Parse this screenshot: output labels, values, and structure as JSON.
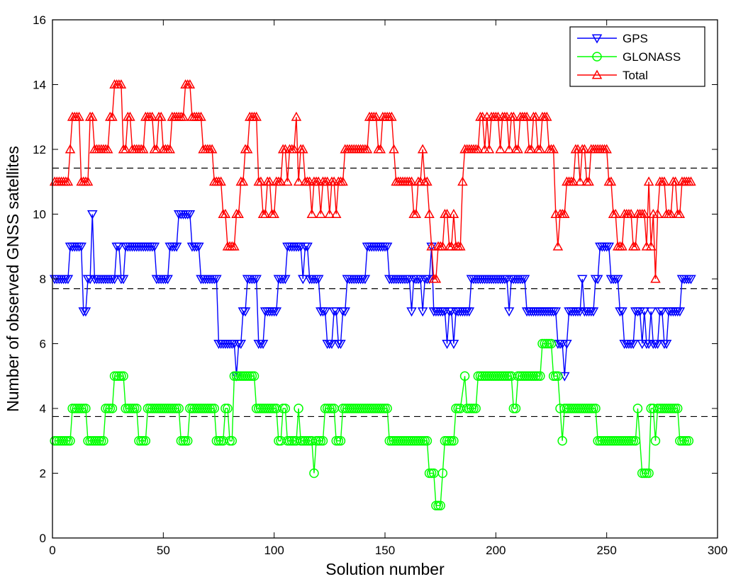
{
  "chart_data": {
    "type": "line",
    "title": "",
    "xlabel": "Solution number",
    "ylabel": "Number of observed GNSS satellites",
    "xlim": [
      0,
      300
    ],
    "ylim": [
      0,
      16
    ],
    "xticks": [
      0,
      50,
      100,
      150,
      200,
      250,
      300
    ],
    "yticks": [
      0,
      2,
      4,
      6,
      8,
      10,
      12,
      14,
      16
    ],
    "grid": false,
    "legend_position": "top-right",
    "mean_lines": [
      {
        "y": 3.75,
        "style": "dashed",
        "color": "#000000"
      },
      {
        "y": 7.7,
        "style": "dashed",
        "color": "#000000"
      },
      {
        "y": 11.42,
        "style": "dashed",
        "color": "#000000"
      }
    ],
    "series": [
      {
        "name": "GPS",
        "color": "#0000ff",
        "marker": "triangle-down",
        "runs": [
          [
            1,
            8,
            7
          ],
          [
            8,
            9,
            6
          ],
          [
            14,
            7,
            2
          ],
          [
            16,
            8,
            2
          ],
          [
            18,
            10,
            1
          ],
          [
            19,
            8,
            10
          ],
          [
            29,
            9,
            2
          ],
          [
            31,
            8,
            2
          ],
          [
            33,
            9,
            14
          ],
          [
            47,
            8,
            6
          ],
          [
            53,
            9,
            4
          ],
          [
            57,
            10,
            6
          ],
          [
            63,
            9,
            4
          ],
          [
            67,
            8,
            8
          ],
          [
            75,
            6,
            8
          ],
          [
            83,
            5,
            1
          ],
          [
            84,
            6,
            2
          ],
          [
            86,
            7,
            2
          ],
          [
            88,
            8,
            5
          ],
          [
            93,
            6,
            3
          ],
          [
            96,
            7,
            6
          ],
          [
            102,
            8,
            4
          ],
          [
            106,
            9,
            7
          ],
          [
            113,
            8,
            1
          ],
          [
            114,
            9,
            2
          ],
          [
            116,
            8,
            5
          ],
          [
            121,
            7,
            3
          ],
          [
            124,
            6,
            3
          ],
          [
            127,
            7,
            2
          ],
          [
            129,
            6,
            2
          ],
          [
            131,
            7,
            2
          ],
          [
            133,
            8,
            9
          ],
          [
            142,
            9,
            10
          ],
          [
            152,
            8,
            10
          ],
          [
            162,
            7,
            1
          ],
          [
            163,
            8,
            4
          ],
          [
            167,
            7,
            1
          ],
          [
            168,
            8,
            3
          ],
          [
            171,
            9,
            1
          ],
          [
            172,
            7,
            6
          ],
          [
            178,
            6,
            1
          ],
          [
            179,
            7,
            2
          ],
          [
            181,
            6,
            1
          ],
          [
            182,
            7,
            7
          ],
          [
            189,
            8,
            7
          ],
          [
            196,
            8,
            2
          ],
          [
            198,
            8,
            8
          ],
          [
            206,
            7,
            1
          ],
          [
            207,
            8,
            7
          ],
          [
            214,
            7,
            2
          ],
          [
            216,
            7,
            12
          ],
          [
            228,
            6,
            3
          ],
          [
            231,
            5,
            1
          ],
          [
            232,
            6,
            1
          ],
          [
            233,
            7,
            6
          ],
          [
            239,
            8,
            1
          ],
          [
            240,
            7,
            5
          ],
          [
            245,
            8,
            2
          ],
          [
            247,
            9,
            5
          ],
          [
            252,
            8,
            4
          ],
          [
            256,
            7,
            2
          ],
          [
            258,
            6,
            5
          ],
          [
            263,
            7,
            3
          ],
          [
            266,
            6,
            1
          ],
          [
            267,
            7,
            1
          ],
          [
            268,
            6,
            2
          ],
          [
            270,
            7,
            1
          ],
          [
            271,
            6,
            3
          ],
          [
            274,
            7,
            2
          ],
          [
            276,
            6,
            2
          ],
          [
            278,
            7,
            6
          ],
          [
            284,
            8,
            5
          ]
        ]
      },
      {
        "name": "GLONASS",
        "color": "#00ff00",
        "marker": "circle",
        "runs": [
          [
            1,
            3,
            8
          ],
          [
            9,
            4,
            7
          ],
          [
            16,
            3,
            8
          ],
          [
            24,
            4,
            4
          ],
          [
            28,
            5,
            5
          ],
          [
            33,
            4,
            6
          ],
          [
            39,
            3,
            4
          ],
          [
            43,
            4,
            15
          ],
          [
            58,
            3,
            4
          ],
          [
            62,
            4,
            12
          ],
          [
            74,
            3,
            4
          ],
          [
            78,
            4,
            2
          ],
          [
            80,
            3,
            2
          ],
          [
            82,
            5,
            10
          ],
          [
            92,
            4,
            10
          ],
          [
            102,
            3,
            2
          ],
          [
            104,
            4,
            2
          ],
          [
            106,
            3,
            5
          ],
          [
            111,
            4,
            1
          ],
          [
            112,
            3,
            6
          ],
          [
            118,
            2,
            1
          ],
          [
            119,
            3,
            4
          ],
          [
            123,
            4,
            5
          ],
          [
            128,
            3,
            3
          ],
          [
            131,
            4,
            4
          ],
          [
            135,
            4,
            17
          ],
          [
            152,
            3,
            18
          ],
          [
            170,
            2,
            3
          ],
          [
            173,
            1,
            3
          ],
          [
            176,
            2,
            1
          ],
          [
            177,
            3,
            3
          ],
          [
            180,
            3,
            2
          ],
          [
            182,
            4,
            3
          ],
          [
            186,
            5,
            1
          ],
          [
            187,
            4,
            3
          ],
          [
            190,
            4,
            2
          ],
          [
            192,
            5,
            8
          ],
          [
            200,
            5,
            6
          ],
          [
            206,
            5,
            2
          ],
          [
            208,
            4,
            2
          ],
          [
            210,
            5,
            11
          ],
          [
            221,
            6,
            5
          ],
          [
            226,
            5,
            3
          ],
          [
            229,
            4,
            1
          ],
          [
            230,
            3,
            1
          ],
          [
            231,
            4,
            15
          ],
          [
            246,
            3,
            18
          ],
          [
            264,
            4,
            1
          ],
          [
            266,
            2,
            4
          ],
          [
            270,
            4,
            2
          ],
          [
            272,
            3,
            1
          ],
          [
            273,
            4,
            4
          ],
          [
            277,
            4,
            6
          ],
          [
            283,
            3,
            5
          ]
        ]
      },
      {
        "name": "Total",
        "color": "#ff0000",
        "marker": "triangle-up",
        "runs": [
          [
            1,
            11,
            4
          ],
          [
            5,
            11,
            3
          ],
          [
            8,
            12,
            1
          ],
          [
            9,
            13,
            4
          ],
          [
            13,
            11,
            4
          ],
          [
            17,
            13,
            2
          ],
          [
            19,
            12,
            7
          ],
          [
            26,
            13,
            2
          ],
          [
            28,
            14,
            4
          ],
          [
            32,
            12,
            2
          ],
          [
            34,
            13,
            2
          ],
          [
            36,
            12,
            6
          ],
          [
            42,
            13,
            4
          ],
          [
            46,
            12,
            2
          ],
          [
            48,
            13,
            2
          ],
          [
            50,
            12,
            4
          ],
          [
            54,
            13,
            4
          ],
          [
            58,
            13,
            2
          ],
          [
            60,
            14,
            3
          ],
          [
            63,
            13,
            5
          ],
          [
            68,
            12,
            5
          ],
          [
            73,
            11,
            4
          ],
          [
            77,
            10,
            2
          ],
          [
            79,
            9,
            4
          ],
          [
            83,
            10,
            2
          ],
          [
            85,
            11,
            2
          ],
          [
            87,
            12,
            2
          ],
          [
            89,
            13,
            4
          ],
          [
            93,
            11,
            2
          ],
          [
            95,
            10,
            2
          ],
          [
            97,
            11,
            2
          ],
          [
            99,
            10,
            2
          ],
          [
            101,
            11,
            3
          ],
          [
            104,
            12,
            2
          ],
          [
            106,
            11,
            1
          ],
          [
            107,
            12,
            3
          ],
          [
            110,
            13,
            1
          ],
          [
            111,
            11,
            1
          ],
          [
            112,
            12,
            2
          ],
          [
            114,
            11,
            3
          ],
          [
            117,
            10,
            1
          ],
          [
            118,
            11,
            3
          ],
          [
            121,
            10,
            1
          ],
          [
            122,
            11,
            3
          ],
          [
            125,
            10,
            1
          ],
          [
            126,
            11,
            2
          ],
          [
            128,
            10,
            1
          ],
          [
            129,
            11,
            3
          ],
          [
            132,
            12,
            6
          ],
          [
            138,
            12,
            5
          ],
          [
            143,
            13,
            4
          ],
          [
            147,
            12,
            2
          ],
          [
            149,
            13,
            5
          ],
          [
            154,
            12,
            1
          ],
          [
            155,
            11,
            5
          ],
          [
            160,
            11,
            3
          ],
          [
            163,
            10,
            2
          ],
          [
            165,
            11,
            2
          ],
          [
            167,
            12,
            1
          ],
          [
            168,
            11,
            2
          ],
          [
            170,
            10,
            1
          ],
          [
            171,
            9,
            1
          ],
          [
            172,
            8,
            2
          ],
          [
            174,
            9,
            1
          ],
          [
            175,
            9,
            2
          ],
          [
            177,
            10,
            2
          ],
          [
            179,
            9,
            2
          ],
          [
            181,
            10,
            1
          ],
          [
            182,
            9,
            3
          ],
          [
            185,
            11,
            1
          ],
          [
            186,
            12,
            4
          ],
          [
            190,
            12,
            3
          ],
          [
            193,
            13,
            2
          ],
          [
            195,
            12,
            1
          ],
          [
            196,
            13,
            1
          ],
          [
            197,
            12,
            1
          ],
          [
            198,
            13,
            4
          ],
          [
            202,
            12,
            1
          ],
          [
            203,
            13,
            3
          ],
          [
            206,
            12,
            1
          ],
          [
            207,
            13,
            2
          ],
          [
            209,
            12,
            2
          ],
          [
            211,
            13,
            4
          ],
          [
            215,
            12,
            2
          ],
          [
            217,
            13,
            2
          ],
          [
            219,
            12,
            2
          ],
          [
            221,
            13,
            3
          ],
          [
            224,
            12,
            2
          ],
          [
            226,
            12,
            1
          ],
          [
            227,
            10,
            1
          ],
          [
            228,
            9,
            1
          ],
          [
            229,
            10,
            3
          ],
          [
            232,
            11,
            4
          ],
          [
            236,
            12,
            2
          ],
          [
            238,
            11,
            1
          ],
          [
            239,
            12,
            2
          ],
          [
            241,
            11,
            2
          ],
          [
            243,
            12,
            5
          ],
          [
            248,
            12,
            3
          ],
          [
            251,
            11,
            2
          ],
          [
            253,
            10,
            2
          ],
          [
            255,
            9,
            3
          ],
          [
            258,
            10,
            4
          ],
          [
            262,
            9,
            2
          ],
          [
            264,
            10,
            4
          ],
          [
            268,
            9,
            1
          ],
          [
            269,
            11,
            1
          ],
          [
            270,
            9,
            1
          ],
          [
            271,
            10,
            1
          ],
          [
            272,
            8,
            1
          ],
          [
            273,
            10,
            1
          ],
          [
            274,
            11,
            3
          ],
          [
            277,
            10,
            3
          ],
          [
            280,
            11,
            2
          ],
          [
            282,
            10,
            2
          ],
          [
            284,
            11,
            5
          ]
        ]
      }
    ]
  }
}
